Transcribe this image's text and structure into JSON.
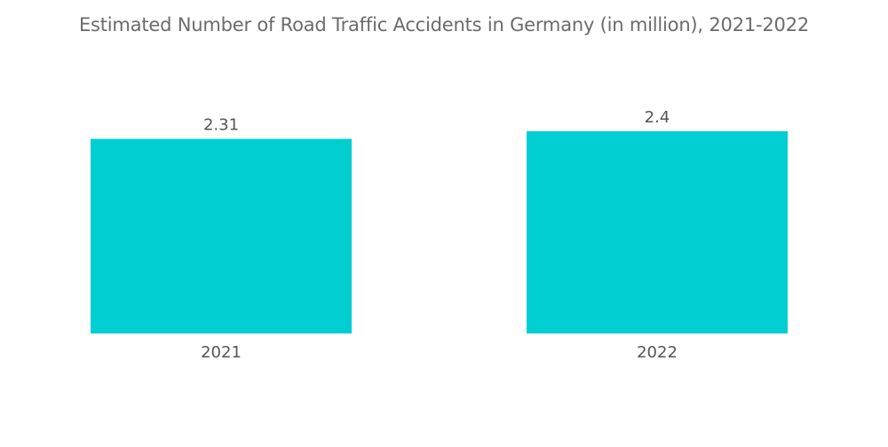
{
  "chart_data": {
    "type": "bar",
    "title": "Estimated Number of Road Traffic Accidents in Germany (in million), 2021-2022",
    "categories": [
      "2021",
      "2022"
    ],
    "values": [
      2.31,
      2.4
    ],
    "value_labels": [
      "2.31",
      "2.4"
    ],
    "xlabel": "",
    "ylabel": "",
    "ylim": [
      0,
      2.4
    ],
    "grid": false,
    "legend": "none",
    "bar_color": "#00CED1"
  }
}
